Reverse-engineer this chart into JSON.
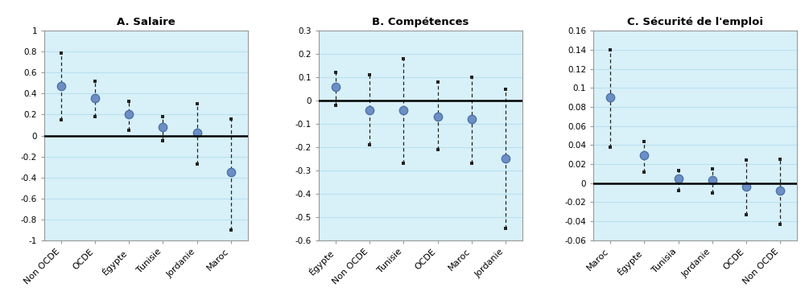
{
  "panel_A": {
    "title": "A. Salaire",
    "categories": [
      "Non OCDE",
      "OCDE",
      "Égypte",
      "Tunisie",
      "Jordanie",
      "Maroc"
    ],
    "values": [
      0.47,
      0.36,
      0.2,
      0.08,
      0.03,
      -0.35
    ],
    "upper_err": [
      0.79,
      0.52,
      0.33,
      0.18,
      0.3,
      0.16
    ],
    "lower_err": [
      0.15,
      0.18,
      0.05,
      -0.05,
      -0.27,
      -0.9
    ],
    "ylim": [
      -1.0,
      1.0
    ],
    "yticks": [
      -1.0,
      -0.8,
      -0.6,
      -0.4,
      -0.2,
      0.0,
      0.2,
      0.4,
      0.6,
      0.8,
      1.0
    ],
    "ytick_labels": [
      "-1",
      "-0.8",
      "-0.6",
      "-0.4",
      "-0.2",
      "0",
      "0.2",
      "0.4",
      "0.6",
      "0.8",
      "1"
    ]
  },
  "panel_B": {
    "title": "B. Compétences",
    "categories": [
      "Égypte",
      "Non OCDE",
      "Tunisie",
      "OCDE",
      "Maroc",
      "Jordanie"
    ],
    "values": [
      0.06,
      -0.04,
      -0.04,
      -0.07,
      -0.08,
      -0.25
    ],
    "upper_err": [
      0.12,
      0.11,
      0.18,
      0.08,
      0.1,
      0.05
    ],
    "lower_err": [
      -0.02,
      -0.19,
      -0.27,
      -0.21,
      -0.27,
      -0.55
    ],
    "ylim": [
      -0.6,
      0.3
    ],
    "yticks": [
      -0.6,
      -0.5,
      -0.4,
      -0.3,
      -0.2,
      -0.1,
      0.0,
      0.1,
      0.2,
      0.3
    ],
    "ytick_labels": [
      "-0.6",
      "-0.5",
      "-0.4",
      "-0.3",
      "-0.2",
      "-0.1",
      "0",
      "0.1",
      "0.2",
      "0.3"
    ]
  },
  "panel_C": {
    "title": "C. Sécurité de l'emploi",
    "categories": [
      "Maroc",
      "Égypte",
      "Tunisia",
      "Jordanie",
      "OCDE",
      "Non OCDE"
    ],
    "values": [
      0.09,
      0.029,
      0.005,
      0.003,
      -0.004,
      -0.008
    ],
    "upper_err": [
      0.14,
      0.044,
      0.013,
      0.015,
      0.024,
      0.025
    ],
    "lower_err": [
      0.038,
      0.012,
      -0.008,
      -0.01,
      -0.033,
      -0.043
    ],
    "ylim": [
      -0.06,
      0.16
    ],
    "yticks": [
      -0.06,
      -0.04,
      -0.02,
      0.0,
      0.02,
      0.04,
      0.06,
      0.08,
      0.1,
      0.12,
      0.14,
      0.16
    ],
    "ytick_labels": [
      "-0.06",
      "-0.04",
      "-0.02",
      "0",
      "0.02",
      "0.04",
      "0.06",
      "0.08",
      "0.1",
      "0.12",
      "0.14",
      "0.16"
    ]
  },
  "bg_color": "#d8f0f8",
  "dot_color": "#6b8ec4",
  "dot_edge_color": "#4a6fa5",
  "err_color": "#222222",
  "zero_line_color": "#000000",
  "grid_color": "#b8e0f0",
  "spine_color": "#999999"
}
